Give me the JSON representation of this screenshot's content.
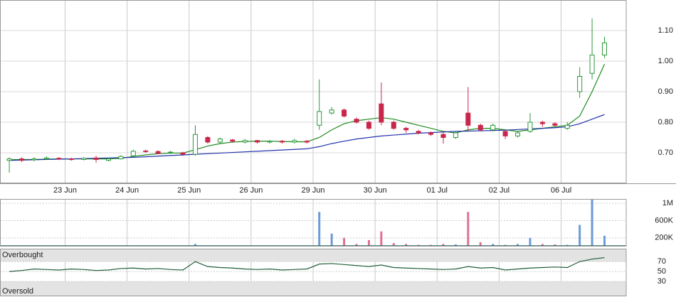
{
  "chart_data": [
    {
      "type": "candlestick",
      "x": [
        1,
        3,
        5,
        7,
        9,
        11,
        13,
        15,
        17,
        19,
        21,
        23,
        25,
        27,
        29,
        31,
        33,
        35,
        37,
        39,
        41,
        43,
        45,
        47,
        49,
        51,
        53,
        55,
        57,
        59,
        61,
        63,
        65,
        67,
        69,
        71,
        73,
        75,
        77,
        79,
        81,
        83,
        85,
        87,
        89,
        91,
        93,
        95,
        97
      ],
      "open": [
        0.675,
        0.68,
        0.677,
        0.68,
        0.682,
        0.68,
        0.678,
        0.683,
        0.675,
        0.68,
        0.69,
        0.706,
        0.704,
        0.7,
        0.7,
        0.695,
        0.75,
        0.735,
        0.742,
        0.735,
        0.74,
        0.735,
        0.738,
        0.735,
        0.738,
        0.79,
        0.83,
        0.84,
        0.81,
        0.8,
        0.86,
        0.8,
        0.78,
        0.77,
        0.765,
        0.76,
        0.75,
        0.83,
        0.79,
        0.775,
        0.77,
        0.755,
        0.77,
        0.8,
        0.795,
        0.78,
        0.9,
        0.96,
        1.02
      ],
      "high": [
        0.685,
        0.685,
        0.685,
        0.688,
        0.686,
        0.684,
        0.686,
        0.69,
        0.683,
        0.692,
        0.71,
        0.71,
        0.708,
        0.706,
        0.703,
        0.79,
        0.755,
        0.75,
        0.745,
        0.745,
        0.742,
        0.742,
        0.742,
        0.745,
        0.742,
        0.94,
        0.85,
        0.845,
        0.815,
        0.805,
        0.93,
        0.805,
        0.785,
        0.775,
        0.77,
        0.77,
        0.77,
        0.915,
        0.795,
        0.795,
        0.775,
        0.77,
        0.83,
        0.805,
        0.8,
        0.8,
        0.98,
        1.14,
        1.08
      ],
      "low": [
        0.635,
        0.67,
        0.672,
        0.676,
        0.676,
        0.674,
        0.675,
        0.668,
        0.672,
        0.678,
        0.686,
        0.7,
        0.695,
        0.696,
        0.69,
        0.69,
        0.73,
        0.73,
        0.733,
        0.73,
        0.73,
        0.73,
        0.73,
        0.73,
        0.73,
        0.775,
        0.825,
        0.815,
        0.795,
        0.775,
        0.79,
        0.775,
        0.765,
        0.76,
        0.755,
        0.73,
        0.745,
        0.77,
        0.77,
        0.77,
        0.745,
        0.75,
        0.765,
        0.785,
        0.785,
        0.775,
        0.88,
        0.94,
        1.01
      ],
      "close": [
        0.68,
        0.675,
        0.68,
        0.683,
        0.68,
        0.678,
        0.682,
        0.678,
        0.68,
        0.688,
        0.705,
        0.704,
        0.698,
        0.702,
        0.695,
        0.76,
        0.735,
        0.745,
        0.738,
        0.74,
        0.735,
        0.738,
        0.735,
        0.74,
        0.735,
        0.835,
        0.84,
        0.82,
        0.8,
        0.78,
        0.8,
        0.78,
        0.775,
        0.765,
        0.76,
        0.75,
        0.765,
        0.79,
        0.775,
        0.79,
        0.755,
        0.765,
        0.8,
        0.795,
        0.79,
        0.79,
        0.95,
        1.02,
        1.06
      ],
      "up_color": "#2a9a3a",
      "down_color": "#c8264b",
      "series": [
        {
          "color": "#1e8a1e",
          "values": [
            0.677,
            0.678,
            0.678,
            0.679,
            0.68,
            0.68,
            0.68,
            0.68,
            0.68,
            0.682,
            0.688,
            0.693,
            0.697,
            0.699,
            0.699,
            0.71,
            0.722,
            0.73,
            0.735,
            0.737,
            0.738,
            0.738,
            0.737,
            0.736,
            0.736,
            0.75,
            0.775,
            0.795,
            0.805,
            0.81,
            0.815,
            0.81,
            0.8,
            0.79,
            0.78,
            0.77,
            0.765,
            0.775,
            0.78,
            0.78,
            0.775,
            0.77,
            0.775,
            0.78,
            0.785,
            0.79,
            0.82,
            0.9,
            0.99
          ]
        },
        {
          "color": "#2233aa",
          "values": [
            0.675,
            0.676,
            0.677,
            0.678,
            0.679,
            0.68,
            0.681,
            0.682,
            0.683,
            0.684,
            0.685,
            0.687,
            0.689,
            0.691,
            0.693,
            0.695,
            0.697,
            0.699,
            0.701,
            0.703,
            0.705,
            0.707,
            0.709,
            0.711,
            0.713,
            0.72,
            0.73,
            0.738,
            0.745,
            0.75,
            0.755,
            0.758,
            0.761,
            0.764,
            0.766,
            0.768,
            0.77,
            0.771,
            0.772,
            0.773,
            0.774,
            0.776,
            0.778,
            0.78,
            0.782,
            0.785,
            0.795,
            0.81,
            0.825
          ]
        }
      ],
      "xlim": [
        -0.5,
        100.5
      ],
      "xticks": [
        {
          "value": 10,
          "label": "23 Jun"
        },
        {
          "value": 20,
          "label": "24 Jun"
        },
        {
          "value": 30,
          "label": "25 Jun"
        },
        {
          "value": 40,
          "label": "26 Jun"
        },
        {
          "value": 50,
          "label": "29 Jun"
        },
        {
          "value": 60,
          "label": "30 Jun"
        },
        {
          "value": 70,
          "label": "01 Jul"
        },
        {
          "value": 80,
          "label": "02 Jul"
        },
        {
          "value": 90,
          "label": "06 Jul"
        }
      ],
      "ylim": [
        0.6,
        1.2
      ],
      "yticks": [
        {
          "value": 0.7,
          "label": "0.70"
        },
        {
          "value": 0.8,
          "label": "0.80"
        },
        {
          "value": 0.9,
          "label": "0.90"
        },
        {
          "value": 1.0,
          "label": "1.00"
        },
        {
          "value": 1.1,
          "label": "1.10"
        }
      ],
      "grid": true
    },
    {
      "type": "bar",
      "x": [
        1,
        3,
        5,
        7,
        9,
        11,
        13,
        15,
        17,
        19,
        21,
        23,
        25,
        27,
        29,
        31,
        33,
        35,
        37,
        39,
        41,
        43,
        45,
        47,
        49,
        51,
        53,
        55,
        57,
        59,
        61,
        63,
        65,
        67,
        69,
        71,
        73,
        75,
        77,
        79,
        81,
        83,
        85,
        87,
        89,
        91,
        93,
        95,
        97
      ],
      "values": [
        20000,
        10000,
        10000,
        10000,
        10000,
        10000,
        10000,
        10000,
        10000,
        10000,
        10000,
        10000,
        10000,
        10000,
        10000,
        60000,
        20000,
        10000,
        10000,
        10000,
        10000,
        10000,
        10000,
        10000,
        10000,
        800000,
        300000,
        200000,
        60000,
        150000,
        350000,
        80000,
        60000,
        40000,
        40000,
        60000,
        50000,
        800000,
        100000,
        60000,
        40000,
        60000,
        200000,
        60000,
        50000,
        40000,
        500000,
        1100000,
        250000
      ],
      "up_color": "#6a9ad8",
      "down_color": "#e07090",
      "xlim": [
        -0.5,
        100.5
      ],
      "ylim": [
        0,
        1100000
      ],
      "yticks": [
        {
          "value": 200000,
          "label": "200K"
        },
        {
          "value": 600000,
          "label": "600K"
        },
        {
          "value": 1000000,
          "label": "1M"
        }
      ]
    },
    {
      "type": "line",
      "x": [
        1,
        3,
        5,
        7,
        9,
        11,
        13,
        15,
        17,
        19,
        21,
        23,
        25,
        27,
        29,
        31,
        33,
        35,
        37,
        39,
        41,
        43,
        45,
        47,
        49,
        51,
        53,
        55,
        57,
        59,
        61,
        63,
        65,
        67,
        69,
        71,
        73,
        75,
        77,
        79,
        81,
        83,
        85,
        87,
        89,
        91,
        93,
        95,
        97
      ],
      "values": [
        50,
        52,
        55,
        54,
        53,
        55,
        54,
        52,
        53,
        56,
        57,
        55,
        56,
        54,
        53,
        70,
        60,
        58,
        57,
        55,
        54,
        55,
        53,
        54,
        55,
        65,
        66,
        64,
        62,
        60,
        63,
        58,
        57,
        56,
        55,
        54,
        55,
        60,
        57,
        58,
        53,
        55,
        57,
        58,
        59,
        58,
        70,
        75,
        78
      ],
      "color": "#1f5e3a",
      "overbought_label": "Overbought",
      "oversold_label": "Oversold",
      "xlim": [
        -0.5,
        100.5
      ],
      "ylim": [
        0,
        96
      ],
      "yticks": [
        30,
        50,
        70
      ]
    }
  ]
}
